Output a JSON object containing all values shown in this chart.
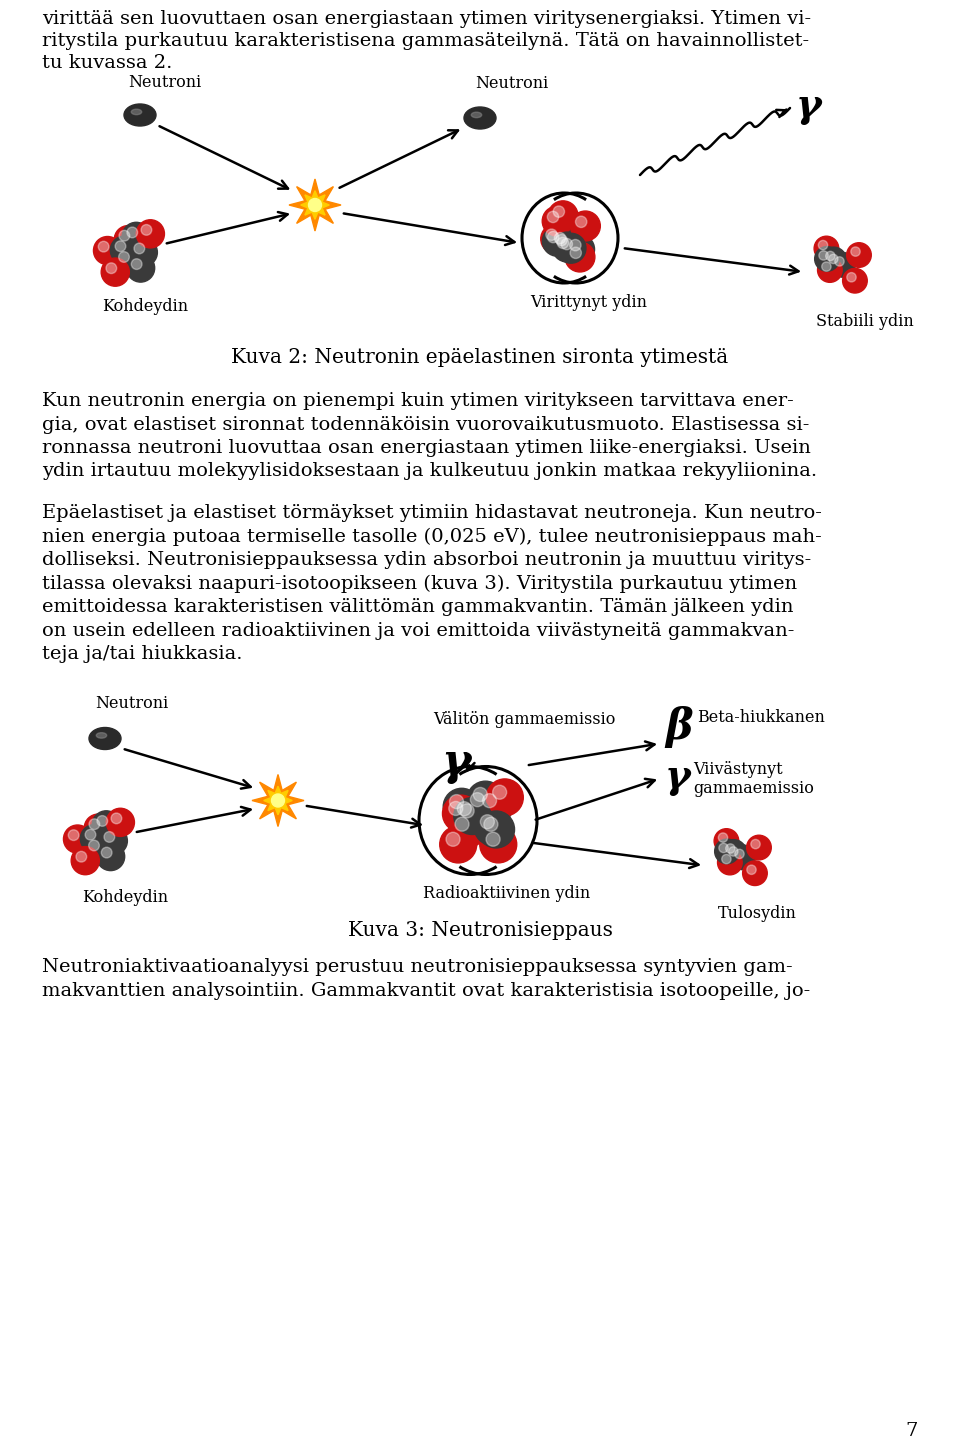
{
  "bg_color": "#ffffff",
  "page_number": "7",
  "fig2_caption": "Kuva 2: Neutronin epäelastinen sironta ytimestä",
  "fig3_caption": "Kuva 3: Neutronisieppaus",
  "fig2_labels": {
    "neutroni_left": "Neutroni",
    "kohdeydin": "Kohdeydin",
    "neutroni_right": "Neutroni",
    "virittynyt_ydin": "Virittynyt ydin",
    "stabiili_ydin": "Stabiili ydin",
    "gamma_symbol": "γ"
  },
  "fig3_labels": {
    "neutroni": "Neutroni",
    "kohdeydin": "Kohdeydin",
    "valitton": "Välitön gammaemissio",
    "gamma_big": "γ",
    "beta_big": "β",
    "beta_hiukkanen": "Beta-hiukkanen",
    "gamma_small": "γ",
    "viivastynyt": "Viivästynyt\ngammaemissio",
    "radioaktiivinen_ydin": "Radioaktiivinen ydin",
    "tulosydin": "Tulosydin"
  },
  "top_lines": [
    "virittää sen luovuttaen osan energiastaan ytimen viritysenergiaksi. Ytimen vi-",
    "ritystila purkautuu karakteristisena gammasäteilynä. Tätä on havainnollistet-",
    "tu kuvassa 2."
  ],
  "body1_lines": [
    "Kun neutronin energia on pienempi kuin ytimen viritykseen tarvittava ener-",
    "gia, ovat elastiset sironnat todennäköisin vuorovaikutusmuoto. Elastisessa si-",
    "ronnassa neutroni luovuttaa osan energiastaan ytimen liike-energiaksi. Usein",
    "ydin irtautuu molekyylisidoksestaan ja kulkeutuu jonkin matkaa rekyyliionina."
  ],
  "body2_lines": [
    "Epäelastiset ja elastiset törmäykset ytimiin hidastavat neutroneja. Kun neutro-",
    "nien energia putoaa termiselle tasolle (0,025 eV), tulee neutronisieppaus mah-",
    "dolliseksi. Neutronisieppauksessa ydin absorboi neutronin ja muuttuu viritys-",
    "tilassa olevaksi naapuri-isotoopikseen (kuva 3). Viritystila purkautuu ytimen",
    "emittoidessa karakteristisen välittömän gammakvantin. Tämän jälkeen ydin",
    "on usein edelleen radioaktiivinen ja voi emittoida viivästyneitä gammakvan-",
    "teja ja/tai hiukkasia."
  ],
  "bottom_lines": [
    "Neutroniaktivaatioanalyysi perustuu neutronisieppauksessa syntyvien gam-",
    "makvanttien analysointiin. Gammakvantit ovat karakteristisia isotoopeille, jo-"
  ]
}
